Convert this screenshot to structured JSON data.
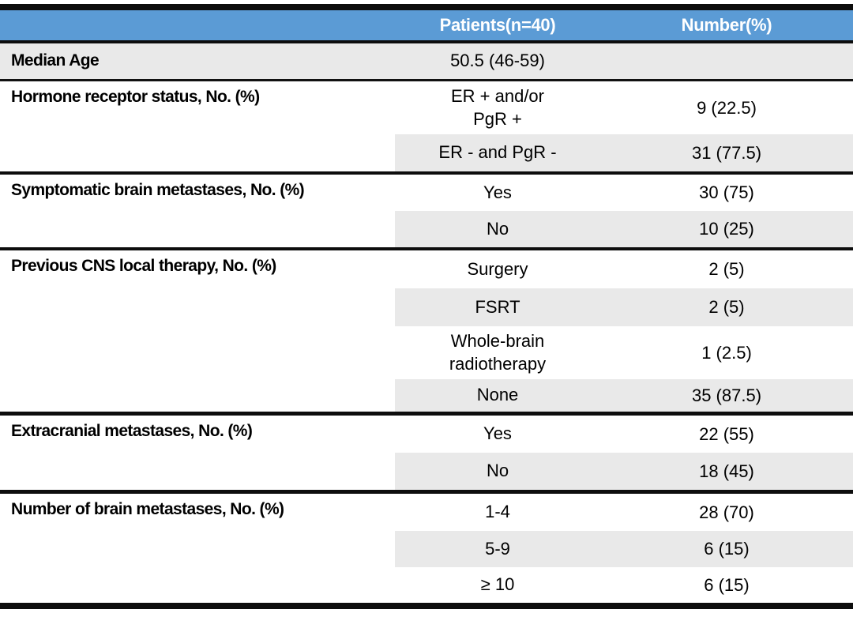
{
  "table": {
    "title_semantic": "patient-characteristics-table",
    "header": {
      "patients": "Patients(n=40)",
      "number": "Number(%)"
    },
    "rows": [
      {
        "label": "Median Age",
        "value": "50.5 (46-59)",
        "value2": "",
        "number": ""
      },
      {
        "label": "Hormone receptor status, No. (%)",
        "value": "ER + and/or",
        "value2": "PgR +",
        "number": "9 (22.5)"
      },
      {
        "label": "",
        "value": "ER - and PgR -",
        "value2": "",
        "number": "31 (77.5)"
      },
      {
        "label": "Symptomatic brain metastases, No. (%)",
        "value": "Yes",
        "value2": "",
        "number": "30 (75)"
      },
      {
        "label": "",
        "value": "No",
        "value2": "",
        "number": "10 (25)"
      },
      {
        "label": "Previous CNS local therapy, No. (%)",
        "value": "Surgery",
        "value2": "",
        "number": "2 (5)"
      },
      {
        "label": "",
        "value": "FSRT",
        "value2": "",
        "number": "2 (5)"
      },
      {
        "label": "",
        "value": "Whole-brain",
        "value2": "radiotherapy",
        "number": "1 (2.5)"
      },
      {
        "label": "",
        "value": "None",
        "value2": "",
        "number": "35 (87.5)"
      },
      {
        "label": "Extracranial metastases, No. (%)",
        "value": "Yes",
        "value2": "",
        "number": "22 (55)"
      },
      {
        "label": "",
        "value": "No",
        "value2": "",
        "number": "18 (45)"
      },
      {
        "label": "Number of brain metastases, No. (%)",
        "value": "1-4",
        "value2": "",
        "number": "28 (70)"
      },
      {
        "label": "",
        "value": "5-9",
        "value2": "",
        "number": "6 (15)"
      },
      {
        "label": "",
        "value": "≥ 10",
        "value2": "",
        "number": "6 (15)"
      }
    ],
    "colors": {
      "header_bg": "#5b9bd5",
      "header_text": "#ffffff",
      "shaded_row_bg": "#e9e9e9",
      "rule": "#0d0d0d"
    }
  }
}
